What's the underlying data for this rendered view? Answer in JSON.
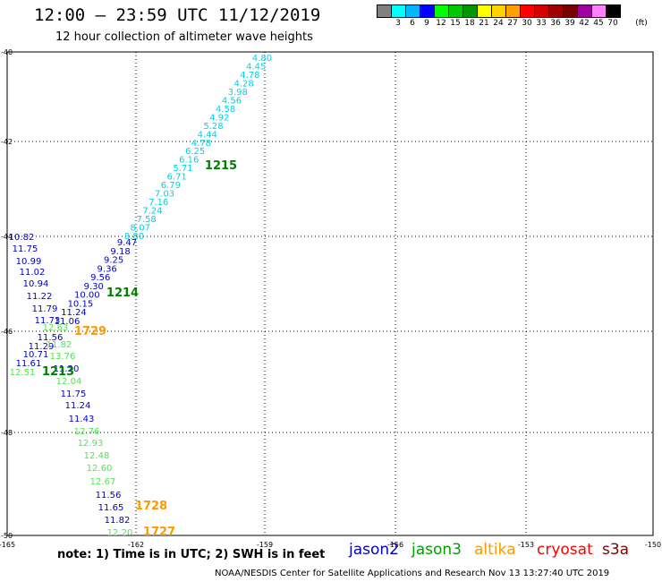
{
  "title": "12:00 — 23:59 UTC 11/12/2019",
  "subtitle": "12 hour collection of altimeter wave heights",
  "scale": {
    "unit": "(ft)",
    "swatches": [
      {
        "label": "",
        "color": "#808080"
      },
      {
        "label": "3",
        "color": "#00ffff"
      },
      {
        "label": "6",
        "color": "#00b4ff"
      },
      {
        "label": "9",
        "color": "#0000ff"
      },
      {
        "label": "12",
        "color": "#00ff00"
      },
      {
        "label": "15",
        "color": "#00c800"
      },
      {
        "label": "18",
        "color": "#009600"
      },
      {
        "label": "21",
        "color": "#ffff00"
      },
      {
        "label": "24",
        "color": "#ffd200"
      },
      {
        "label": "27",
        "color": "#ffa000"
      },
      {
        "label": "30",
        "color": "#ff0000"
      },
      {
        "label": "33",
        "color": "#d20000"
      },
      {
        "label": "36",
        "color": "#a00000"
      },
      {
        "label": "39",
        "color": "#780000"
      },
      {
        "label": "42",
        "color": "#a000a0"
      },
      {
        "label": "45",
        "color": "#ff82ff"
      },
      {
        "label": "70",
        "color": "#000000"
      }
    ]
  },
  "axes": {
    "lat_labels": [
      "-40",
      "-42",
      "-44",
      "-46",
      "-48",
      "-50"
    ],
    "lon_labels": [
      "-165",
      "-162",
      "-159",
      "-156",
      "-153",
      "-150"
    ]
  },
  "tracks": {
    "cyan_track": {
      "color": "#00d2e6",
      "values": [
        "4.80",
        "4.45",
        "4.78",
        "4.28",
        "3.98",
        "4.56",
        "4.58",
        "4.92",
        "5.28",
        "4.44",
        "4.78",
        "6.25",
        "6.16",
        "5.71",
        "6.71",
        "6.79",
        "7.03",
        "7.16",
        "7.24",
        "7.58",
        "8.07",
        "8.80"
      ]
    },
    "blue_track_upper": {
      "color": "#0000c8",
      "values": [
        "9.47",
        "9.18",
        "9.25",
        "9.36",
        "9.56",
        "9.30",
        "10.00",
        "10.15",
        "11.24",
        "11.06"
      ]
    },
    "blue_track_left": {
      "color": "#0000c8",
      "values": [
        "10.82",
        "11.75",
        "10.99",
        "11.02",
        "10.94",
        "11.22",
        "11.79",
        "11.73",
        "11.56",
        "11.29",
        "10.71",
        "11.61"
      ]
    },
    "green_track_lower": {
      "color": "#50e650",
      "values": [
        "12.63",
        "11.82",
        "13.76",
        "12.51",
        "12.04",
        "12.76",
        "12.93",
        "12.48",
        "12.60",
        "12.67",
        "12.20"
      ]
    },
    "blue_track_lower": {
      "color": "#0000c8",
      "values": [
        "11.20",
        "11.75",
        "11.24",
        "11.43",
        "11.56",
        "11.65",
        "11.82"
      ]
    },
    "time_labels": [
      {
        "text": "1215",
        "color": "#008000"
      },
      {
        "text": "1214",
        "color": "#008000"
      },
      {
        "text": "1729",
        "color": "#ff9900"
      },
      {
        "text": "1213",
        "color": "#008000"
      },
      {
        "text": "1728",
        "color": "#ff9900"
      },
      {
        "text": "1727",
        "color": "#ff9900"
      }
    ]
  },
  "note": "note:  1) Time is in UTC; 2) SWH is in feet",
  "legend": [
    {
      "label": "jason2",
      "color": "#0000c8"
    },
    {
      "label": "jason3",
      "color": "#00a000"
    },
    {
      "label": "altika",
      "color": "#ff9900"
    },
    {
      "label": "cryosat",
      "color": "#ff0000"
    },
    {
      "label": "s3a",
      "color": "#800000"
    }
  ],
  "footer": "NOAA/NESDIS Center for Satellite Applications and Research     Nov 13 13:27:40 UTC 2019"
}
